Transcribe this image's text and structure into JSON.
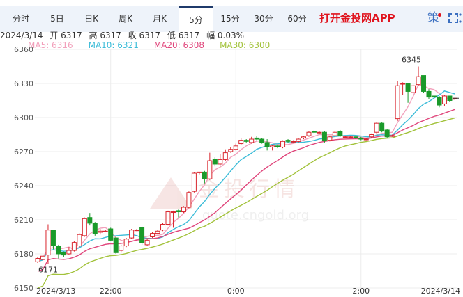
{
  "tabs": [
    {
      "label": "分时"
    },
    {
      "label": "5日"
    },
    {
      "label": "日K"
    },
    {
      "label": "周K"
    },
    {
      "label": "月K"
    },
    {
      "label": "5分",
      "active": true
    },
    {
      "label": "15分"
    },
    {
      "label": "30分"
    },
    {
      "label": "60分"
    }
  ],
  "promo": "打开金投网APP",
  "strategy_label": "策",
  "icons": {
    "fullscreen": "fullscreen-icon",
    "more": "more-vertical-icon"
  },
  "info": {
    "date": "2024/3/14",
    "open": "开 6317",
    "high": "高 6317",
    "close": "收 6317",
    "low": "低 6317",
    "change": "幅 0.03%"
  },
  "ma": [
    {
      "label": "MA5: 6316",
      "color": "#f2a0bb"
    },
    {
      "label": "MA10: 6321",
      "color": "#3cbcd8"
    },
    {
      "label": "MA20: 6308",
      "color": "#e0457b"
    },
    {
      "label": "MA30: 6300",
      "color": "#a2c23a"
    }
  ],
  "watermark": {
    "text": "金投行情",
    "url": "quote.cngold.org"
  },
  "colors": {
    "up": "#d9262e",
    "down": "#1a9a2a",
    "grid": "#ececec"
  },
  "chart_data": {
    "type": "candlestick",
    "interval": "5分",
    "ylim": [
      6150,
      6360
    ],
    "yticks": [
      6150,
      6180,
      6210,
      6240,
      6270,
      6300,
      6330,
      6360
    ],
    "xticks": [
      {
        "label": "2024/3/13",
        "index": 0
      },
      {
        "label": "22:00",
        "index": 14
      },
      {
        "label": "0:00",
        "index": 38
      },
      {
        "label": "2:00",
        "index": 62
      },
      {
        "label": "2024/3/14",
        "index": 80
      }
    ],
    "annotations": [
      {
        "text": "6345",
        "index": 73,
        "value": 6345
      },
      {
        "text": "6171",
        "index": 2,
        "value": 6171
      }
    ],
    "ohlc": [
      [
        6173,
        6177,
        6172,
        6176
      ],
      [
        6175,
        6179,
        6174,
        6178
      ],
      [
        6179,
        6206,
        6171,
        6201
      ],
      [
        6201,
        6201,
        6184,
        6187
      ],
      [
        6187,
        6188,
        6176,
        6180
      ],
      [
        6181,
        6182,
        6177,
        6179
      ],
      [
        6180,
        6186,
        6179,
        6183
      ],
      [
        6183,
        6191,
        6182,
        6190
      ],
      [
        6187,
        6198,
        6186,
        6197
      ],
      [
        6196,
        6212,
        6195,
        6211
      ],
      [
        6212,
        6216,
        6205,
        6207
      ],
      [
        6207,
        6208,
        6196,
        6198
      ],
      [
        6199,
        6202,
        6197,
        6200
      ],
      [
        6200,
        6201,
        6199,
        6200
      ],
      [
        6202,
        6203,
        6191,
        6192
      ],
      [
        6194,
        6195,
        6180,
        6181
      ],
      [
        6183,
        6188,
        6181,
        6187
      ],
      [
        6187,
        6194,
        6186,
        6193
      ],
      [
        6194,
        6202,
        6193,
        6201
      ],
      [
        6201,
        6202,
        6200,
        6201
      ],
      [
        6203,
        6204,
        6188,
        6190
      ],
      [
        6188,
        6193,
        6187,
        6192
      ],
      [
        6195,
        6199,
        6194,
        6198
      ],
      [
        6198,
        6201,
        6197,
        6200
      ],
      [
        6201,
        6207,
        6200,
        6206
      ],
      [
        6206,
        6218,
        6205,
        6217
      ],
      [
        6217,
        6218,
        6203,
        6217
      ],
      [
        6218,
        6219,
        6212,
        6217
      ],
      [
        6217,
        6222,
        6216,
        6221
      ],
      [
        6221,
        6235,
        6220,
        6234
      ],
      [
        6235,
        6252,
        6234,
        6251
      ],
      [
        6252,
        6252,
        6250,
        6252
      ],
      [
        6252,
        6253,
        6242,
        6246
      ],
      [
        6246,
        6269,
        6245,
        6262
      ],
      [
        6263,
        6265,
        6257,
        6259
      ],
      [
        6259,
        6268,
        6258,
        6263
      ],
      [
        6263,
        6272,
        6262,
        6269
      ],
      [
        6270,
        6274,
        6269,
        6272
      ],
      [
        6272,
        6277,
        6271,
        6275
      ],
      [
        6277,
        6282,
        6276,
        6280
      ],
      [
        6280,
        6281,
        6278,
        6279
      ],
      [
        6278,
        6283,
        6277,
        6281
      ],
      [
        6282,
        6284,
        6280,
        6281
      ],
      [
        6281,
        6282,
        6277,
        6278
      ],
      [
        6278,
        6281,
        6271,
        6274
      ],
      [
        6274,
        6276,
        6271,
        6275
      ],
      [
        6275,
        6276,
        6273,
        6274
      ],
      [
        6274,
        6280,
        6273,
        6279
      ],
      [
        6280,
        6281,
        6278,
        6279
      ],
      [
        6279,
        6280,
        6278,
        6279
      ],
      [
        6279,
        6282,
        6278,
        6281
      ],
      [
        6282,
        6284,
        6281,
        6283
      ],
      [
        6284,
        6288,
        6283,
        6287
      ],
      [
        6288,
        6289,
        6286,
        6287
      ],
      [
        6287,
        6288,
        6286,
        6287
      ],
      [
        6287,
        6288,
        6278,
        6280
      ],
      [
        6280,
        6284,
        6279,
        6283
      ],
      [
        6284,
        6288,
        6283,
        6287
      ],
      [
        6288,
        6289,
        6283,
        6284
      ],
      [
        6283,
        6284,
        6282,
        6283
      ],
      [
        6283,
        6284,
        6282,
        6283
      ],
      [
        6283,
        6284,
        6281,
        6282
      ],
      [
        6282,
        6283,
        6280,
        6281
      ],
      [
        6281,
        6282,
        6280,
        6281
      ],
      [
        6283,
        6286,
        6282,
        6285
      ],
      [
        6287,
        6296,
        6286,
        6295
      ],
      [
        6295,
        6296,
        6287,
        6288
      ],
      [
        6289,
        6290,
        6282,
        6283
      ],
      [
        6284,
        6285,
        6283,
        6284
      ],
      [
        6299,
        6332,
        6297,
        6328
      ],
      [
        6330,
        6331,
        6320,
        6330
      ],
      [
        6330,
        6330,
        6313,
        6323
      ],
      [
        6322,
        6329,
        6320,
        6328
      ],
      [
        6329,
        6345,
        6328,
        6336
      ],
      [
        6337,
        6337,
        6322,
        6323
      ],
      [
        6323,
        6325,
        6316,
        6318
      ],
      [
        6319,
        6320,
        6316,
        6318
      ],
      [
        6318,
        6319,
        6309,
        6311
      ],
      [
        6312,
        6320,
        6310,
        6319
      ],
      [
        6319,
        6319,
        6314,
        6315
      ],
      [
        6317,
        6317,
        6317,
        6317
      ]
    ]
  }
}
